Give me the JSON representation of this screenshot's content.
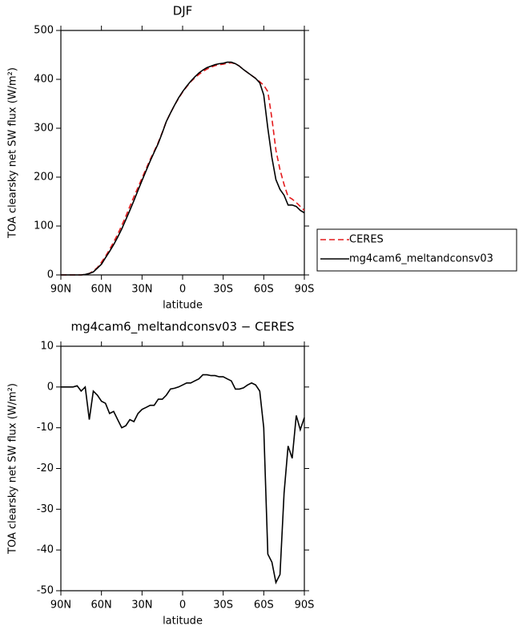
{
  "chart_data": [
    {
      "type": "line",
      "title": "DJF",
      "xlabel": "latitude",
      "ylabel": "TOA clearsky net SW flux (W/m²)",
      "x": [
        90,
        87,
        84,
        81,
        78,
        75,
        72,
        69,
        66,
        63,
        60,
        57,
        54,
        51,
        48,
        45,
        42,
        39,
        36,
        33,
        30,
        27,
        24,
        21,
        18,
        15,
        12,
        9,
        6,
        3,
        0,
        -3,
        -6,
        -9,
        -12,
        -15,
        -18,
        -21,
        -24,
        -27,
        -30,
        -33,
        -36,
        -39,
        -42,
        -45,
        -48,
        -51,
        -54,
        -57,
        -60,
        -63,
        -66,
        -69,
        -72,
        -75,
        -78,
        -81,
        -84,
        -87,
        -90
      ],
      "series": [
        {
          "name": "CERES",
          "color": "#e41a1c",
          "dashed": true,
          "values": [
            0,
            0,
            0,
            0,
            0,
            0,
            1,
            3,
            8,
            15,
            26,
            38,
            52,
            67,
            83,
            101,
            120,
            140,
            160,
            179,
            198,
            217,
            236,
            253,
            271,
            292,
            314,
            331,
            347,
            361,
            374,
            385,
            395,
            403,
            410,
            416,
            421,
            425,
            428,
            430,
            431,
            433,
            434,
            432,
            427,
            420,
            414,
            408,
            402,
            395,
            388,
            375,
            320,
            255,
            215,
            185,
            160,
            155,
            148,
            140,
            132
          ]
        },
        {
          "name": "mg4cam6_meltandconsv03",
          "color": "#000000",
          "dashed": false,
          "values": [
            0,
            0,
            0,
            0,
            0,
            0,
            1,
            3,
            6,
            14,
            22,
            35,
            48,
            62,
            77,
            94,
            113,
            132,
            152,
            173,
            193,
            213,
            233,
            251,
            269,
            291,
            314,
            331,
            347,
            362,
            375,
            386,
            396,
            405,
            413,
            419,
            424,
            427,
            430,
            432,
            433,
            435,
            435,
            432,
            427,
            420,
            414,
            408,
            402,
            393,
            368,
            300,
            240,
            195,
            175,
            163,
            143,
            143,
            140,
            132,
            127
          ]
        }
      ],
      "xlim": [
        90,
        -90
      ],
      "xticks": [
        {
          "value": 90,
          "label": "90N"
        },
        {
          "value": 60,
          "label": "60N"
        },
        {
          "value": 30,
          "label": "30N"
        },
        0,
        {
          "value": -30,
          "label": "30S"
        },
        {
          "value": -60,
          "label": "60S"
        },
        {
          "value": -90,
          "label": "90S"
        }
      ],
      "ylim": [
        0,
        500
      ],
      "yticks": [
        0,
        100,
        200,
        300,
        400,
        500
      ],
      "legend": "right"
    },
    {
      "type": "line",
      "title": "mg4cam6_meltandconsv03 − CERES",
      "xlabel": "latitude",
      "ylabel": "TOA clearsky net SW flux (W/m²)",
      "x": [
        90,
        87,
        84,
        81,
        78,
        75,
        72,
        69,
        66,
        63,
        60,
        57,
        54,
        51,
        48,
        45,
        42,
        39,
        36,
        33,
        30,
        27,
        24,
        21,
        18,
        15,
        12,
        9,
        6,
        3,
        0,
        -3,
        -6,
        -9,
        -12,
        -15,
        -18,
        -21,
        -24,
        -27,
        -30,
        -33,
        -36,
        -39,
        -42,
        -45,
        -48,
        -51,
        -54,
        -57,
        -60,
        -63,
        -66,
        -69,
        -72,
        -75,
        -78,
        -81,
        -84,
        -87,
        -90
      ],
      "values": [
        0,
        0,
        0,
        0,
        0.3,
        -1,
        0,
        -8,
        -1,
        -2,
        -3.5,
        -4,
        -6.5,
        -6,
        -8,
        -10,
        -9.5,
        -8,
        -8.5,
        -6.5,
        -5.5,
        -5,
        -4.5,
        -4.5,
        -3,
        -3,
        -2,
        -0.5,
        -0.3,
        0,
        0.5,
        1,
        1,
        1.5,
        2,
        3,
        3,
        2.8,
        2.8,
        2.5,
        2.5,
        2,
        1.5,
        -0.5,
        -0.5,
        -0.2,
        0.5,
        1,
        0.5,
        -1,
        -10,
        -41,
        -43,
        -48,
        -46,
        -26,
        -14.5,
        -17.5,
        -7,
        -10.5,
        -7.5
      ],
      "color": "#000000",
      "xlim": [
        90,
        -90
      ],
      "xticks": [
        {
          "value": 90,
          "label": "90N"
        },
        {
          "value": 60,
          "label": "60N"
        },
        {
          "value": 30,
          "label": "30N"
        },
        0,
        {
          "value": -30,
          "label": "30S"
        },
        {
          "value": -60,
          "label": "60S"
        },
        {
          "value": -90,
          "label": "90S"
        }
      ],
      "ylim": [
        -50,
        10
      ],
      "yticks": [
        -50,
        -40,
        -30,
        -20,
        -10,
        0,
        10
      ]
    }
  ]
}
